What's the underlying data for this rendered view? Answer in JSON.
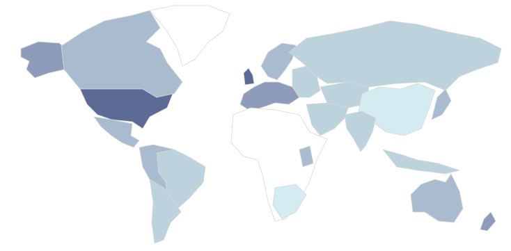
{
  "chart_data": {
    "type": "choropleth",
    "colors": [
      "#5c6b96",
      "#8c9cba",
      "#a9bccf",
      "#bcd3de",
      "#d3ecf1",
      "#ffffff"
    ]
  }
}
